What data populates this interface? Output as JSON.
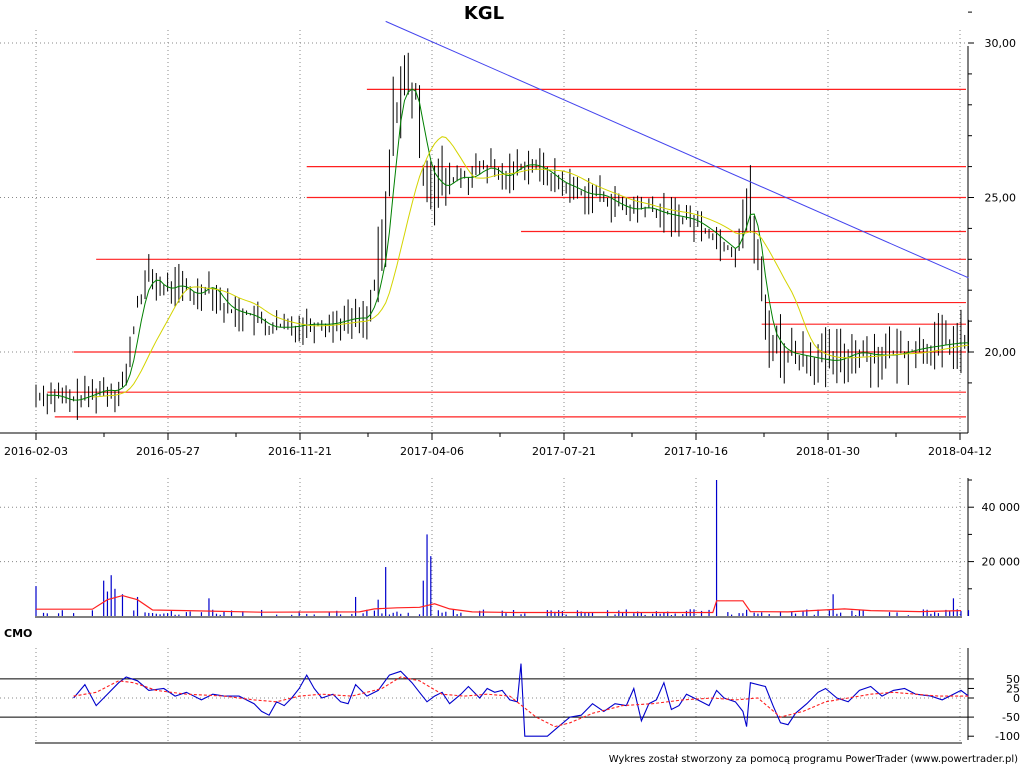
{
  "chart_data": [
    {
      "type": "candlestick",
      "title": "KGL",
      "xlabel": "",
      "ylabel": "",
      "x_tick_labels": [
        "2016-02-03",
        "2016-05-27",
        "2016-11-21",
        "2017-04-06",
        "2017-07-21",
        "2017-10-16",
        "2018-01-30",
        "2018-04-12"
      ],
      "y_tick_labels": [
        "30,00",
        "25,00",
        "20,00"
      ],
      "ylim": [
        17.2,
        31.5
      ],
      "grid": true,
      "price_path": [
        [
          0,
          18.6
        ],
        [
          5,
          18.6
        ],
        [
          9,
          18.4
        ],
        [
          14,
          18.6
        ],
        [
          18,
          18.8
        ],
        [
          21,
          18.7
        ],
        [
          24,
          19.2
        ],
        [
          27,
          21.5
        ],
        [
          30,
          22.5
        ],
        [
          34,
          22.0
        ],
        [
          38,
          22.2
        ],
        [
          42,
          21.8
        ],
        [
          46,
          22.2
        ],
        [
          50,
          21.5
        ],
        [
          53,
          21.3
        ],
        [
          57,
          21.2
        ],
        [
          62,
          20.8
        ],
        [
          67,
          20.8
        ],
        [
          72,
          20.9
        ],
        [
          78,
          20.9
        ],
        [
          84,
          21.1
        ],
        [
          88,
          21.1
        ],
        [
          91,
          22.5
        ],
        [
          93,
          24.0
        ],
        [
          95,
          27.5
        ],
        [
          97,
          28.5
        ],
        [
          99,
          28.6
        ],
        [
          101,
          28.2
        ],
        [
          103,
          26.0
        ],
        [
          105,
          25.8
        ],
        [
          107,
          25.3
        ],
        [
          109,
          25.4
        ],
        [
          112,
          25.7
        ],
        [
          115,
          25.6
        ],
        [
          118,
          25.9
        ],
        [
          121,
          26.0
        ],
        [
          124,
          25.6
        ],
        [
          128,
          26.0
        ],
        [
          131,
          26.1
        ],
        [
          135,
          25.9
        ],
        [
          139,
          25.5
        ],
        [
          143,
          25.3
        ],
        [
          146,
          25.1
        ],
        [
          150,
          25.1
        ],
        [
          154,
          24.8
        ],
        [
          158,
          24.6
        ],
        [
          162,
          24.7
        ],
        [
          166,
          24.5
        ],
        [
          170,
          24.4
        ],
        [
          174,
          24.3
        ],
        [
          178,
          24.0
        ],
        [
          182,
          23.6
        ],
        [
          186,
          23.2
        ],
        [
          188,
          24.5
        ],
        [
          190,
          24.8
        ],
        [
          192,
          23.0
        ],
        [
          194,
          21.0
        ],
        [
          196,
          20.4
        ],
        [
          199,
          20.0
        ],
        [
          203,
          19.9
        ],
        [
          207,
          19.8
        ],
        [
          212,
          19.7
        ],
        [
          218,
          20.0
        ],
        [
          223,
          19.9
        ],
        [
          228,
          19.9
        ],
        [
          234,
          20.1
        ],
        [
          239,
          20.2
        ],
        [
          245,
          20.3
        ]
      ],
      "overlays": [
        {
          "name": "short_ma",
          "color": "#008000"
        },
        {
          "name": "long_ma",
          "color": "#d4d400"
        }
      ],
      "horizontal_levels": [
        {
          "y": 28.5,
          "x_start": 88
        },
        {
          "y": 26.0,
          "x_start": 72
        },
        {
          "y": 25.0,
          "x_start": 72
        },
        {
          "y": 23.9,
          "x_start": 129
        },
        {
          "y": 23.0,
          "x_start": 16
        },
        {
          "y": 21.6,
          "x_start": 194
        },
        {
          "y": 20.9,
          "x_start": 193
        },
        {
          "y": 20.0,
          "x_start": 10
        },
        {
          "y": 18.7,
          "x_start": 3
        },
        {
          "y": 17.9,
          "x_start": 5
        }
      ],
      "trendline": {
        "x_start": 93,
        "y_start": 30.7,
        "x_end": 248,
        "y_end": 22.4,
        "color": "#4444ee"
      },
      "level_color": "#ff2020",
      "bar_color": "#000000"
    },
    {
      "type": "bar",
      "name": "volume",
      "y_tick_labels": [
        "40 000",
        "20 000"
      ],
      "ylim": [
        0,
        52000
      ],
      "bar_color": "#0000cc",
      "spikes": [
        {
          "x": 0,
          "value": 11000
        },
        {
          "x": 18,
          "value": 13000
        },
        {
          "x": 19,
          "value": 9000
        },
        {
          "x": 20,
          "value": 15000
        },
        {
          "x": 21,
          "value": 10000
        },
        {
          "x": 23,
          "value": 8000
        },
        {
          "x": 27,
          "value": 7000
        },
        {
          "x": 46,
          "value": 6500
        },
        {
          "x": 85,
          "value": 7000
        },
        {
          "x": 91,
          "value": 6000
        },
        {
          "x": 93,
          "value": 18000
        },
        {
          "x": 103,
          "value": 13000
        },
        {
          "x": 104,
          "value": 30000
        },
        {
          "x": 105,
          "value": 22000
        },
        {
          "x": 181,
          "value": 50000
        },
        {
          "x": 212,
          "value": 8000
        },
        {
          "x": 244,
          "value": 6500
        }
      ],
      "average_line": [
        [
          0,
          2500
        ],
        [
          15,
          2500
        ],
        [
          19,
          6000
        ],
        [
          23,
          7500
        ],
        [
          27,
          6000
        ],
        [
          31,
          2200
        ],
        [
          40,
          2000
        ],
        [
          60,
          1400
        ],
        [
          86,
          1500
        ],
        [
          90,
          2600
        ],
        [
          96,
          3000
        ],
        [
          102,
          3200
        ],
        [
          106,
          4500
        ],
        [
          110,
          2600
        ],
        [
          116,
          1500
        ],
        [
          127,
          1300
        ],
        [
          150,
          1300
        ],
        [
          180,
          1300
        ],
        [
          181,
          5600
        ],
        [
          188,
          5600
        ],
        [
          190,
          1600
        ],
        [
          200,
          1500
        ],
        [
          215,
          2600
        ],
        [
          222,
          2000
        ],
        [
          235,
          1600
        ],
        [
          246,
          2000
        ]
      ],
      "average_color": "#ff2020"
    },
    {
      "type": "line",
      "name": "CMO",
      "y_tick_labels": [
        "50",
        "25",
        "0",
        "-50",
        "-100"
      ],
      "ylim": [
        -100,
        100
      ],
      "reference_lines": [
        50,
        -50
      ],
      "series": [
        {
          "name": "",
          "color": "#0000cc",
          "points": [
            [
              10,
              0
            ],
            [
              13,
              35
            ],
            [
              16,
              -20
            ],
            [
              19,
              10
            ],
            [
              22,
              40
            ],
            [
              24,
              55
            ],
            [
              27,
              45
            ],
            [
              30,
              20
            ],
            [
              34,
              25
            ],
            [
              37,
              5
            ],
            [
              40,
              15
            ],
            [
              44,
              -5
            ],
            [
              47,
              10
            ],
            [
              50,
              5
            ],
            [
              54,
              5
            ],
            [
              58,
              -15
            ],
            [
              60,
              -35
            ],
            [
              62,
              -45
            ],
            [
              64,
              -10
            ],
            [
              66,
              -20
            ],
            [
              68,
              0
            ],
            [
              70,
              25
            ],
            [
              72,
              60
            ],
            [
              74,
              25
            ],
            [
              76,
              0
            ],
            [
              79,
              10
            ],
            [
              81,
              -10
            ],
            [
              83,
              -15
            ],
            [
              85,
              35
            ],
            [
              88,
              5
            ],
            [
              91,
              20
            ],
            [
              94,
              60
            ],
            [
              97,
              70
            ],
            [
              100,
              40
            ],
            [
              102,
              15
            ],
            [
              104,
              -10
            ],
            [
              106,
              5
            ],
            [
              108,
              15
            ],
            [
              110,
              -15
            ],
            [
              113,
              10
            ],
            [
              115,
              30
            ],
            [
              118,
              0
            ],
            [
              120,
              25
            ],
            [
              122,
              15
            ],
            [
              124,
              20
            ],
            [
              126,
              -5
            ],
            [
              128,
              -10
            ],
            [
              129,
              90
            ],
            [
              130,
              -100
            ],
            [
              136,
              -100
            ],
            [
              139,
              -75
            ],
            [
              142,
              -50
            ],
            [
              145,
              -45
            ],
            [
              148,
              -15
            ],
            [
              151,
              -35
            ],
            [
              154,
              -15
            ],
            [
              157,
              -20
            ],
            [
              159,
              25
            ],
            [
              161,
              -60
            ],
            [
              163,
              -15
            ],
            [
              165,
              -5
            ],
            [
              167,
              40
            ],
            [
              169,
              -30
            ],
            [
              171,
              -20
            ],
            [
              173,
              10
            ],
            [
              176,
              -5
            ],
            [
              179,
              -20
            ],
            [
              181,
              20
            ],
            [
              183,
              0
            ],
            [
              186,
              -10
            ],
            [
              188,
              -35
            ],
            [
              189,
              -75
            ],
            [
              190,
              40
            ],
            [
              194,
              30
            ],
            [
              196,
              -20
            ],
            [
              198,
              -65
            ],
            [
              200,
              -70
            ],
            [
              202,
              -40
            ],
            [
              205,
              -15
            ],
            [
              208,
              15
            ],
            [
              210,
              25
            ],
            [
              213,
              0
            ],
            [
              216,
              -10
            ],
            [
              219,
              20
            ],
            [
              222,
              30
            ],
            [
              225,
              5
            ],
            [
              228,
              20
            ],
            [
              231,
              25
            ],
            [
              234,
              10
            ],
            [
              238,
              5
            ],
            [
              241,
              -5
            ],
            [
              244,
              10
            ],
            [
              246,
              20
            ],
            [
              248,
              5
            ]
          ]
        },
        {
          "name": "",
          "color": "#ff2020",
          "dashed": true,
          "points": [
            [
              10,
              5
            ],
            [
              16,
              15
            ],
            [
              22,
              45
            ],
            [
              26,
              40
            ],
            [
              32,
              20
            ],
            [
              40,
              10
            ],
            [
              50,
              5
            ],
            [
              58,
              -5
            ],
            [
              64,
              -10
            ],
            [
              70,
              5
            ],
            [
              76,
              10
            ],
            [
              84,
              5
            ],
            [
              92,
              25
            ],
            [
              97,
              55
            ],
            [
              102,
              45
            ],
            [
              108,
              10
            ],
            [
              114,
              5
            ],
            [
              120,
              10
            ],
            [
              126,
              5
            ],
            [
              133,
              -50
            ],
            [
              138,
              -75
            ],
            [
              142,
              -65
            ],
            [
              148,
              -40
            ],
            [
              156,
              -20
            ],
            [
              164,
              -15
            ],
            [
              172,
              -5
            ],
            [
              180,
              0
            ],
            [
              186,
              -5
            ],
            [
              192,
              0
            ],
            [
              198,
              -50
            ],
            [
              204,
              -35
            ],
            [
              210,
              -10
            ],
            [
              216,
              0
            ],
            [
              222,
              10
            ],
            [
              228,
              15
            ],
            [
              234,
              10
            ],
            [
              240,
              5
            ],
            [
              248,
              5
            ]
          ]
        }
      ]
    }
  ],
  "labels": {
    "cmo_panel": "CMO",
    "credit": "Wykres został stworzony za pomocą programu PowerTrader (www.powertrader.pl)"
  }
}
